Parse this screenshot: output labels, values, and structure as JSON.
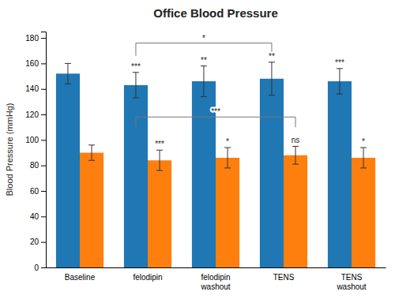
{
  "chart_data": {
    "type": "bar",
    "title": "Office Blood Pressure",
    "ylabel": "Blood Pressure (mmHg)",
    "categories": [
      "Baseline",
      "felodipin",
      "felodipin\nwashout",
      "TENS",
      "TENS\nwashout"
    ],
    "series": [
      {
        "values": [
          152,
          143,
          146,
          148,
          146
        ],
        "errors": [
          8,
          10,
          12,
          13,
          10
        ],
        "annotations": [
          null,
          "***",
          "**",
          "**",
          "***"
        ]
      },
      {
        "values": [
          90,
          84,
          86,
          88,
          86
        ],
        "errors": [
          6,
          8,
          8,
          7,
          8
        ],
        "annotations": [
          null,
          "***",
          "*",
          "ns",
          "*"
        ]
      }
    ],
    "brackets": [
      {
        "from": {
          "category": 1,
          "series": 0
        },
        "to": {
          "category": 3,
          "series": 0
        },
        "y": 176,
        "drop": 10,
        "label": "*"
      },
      {
        "from": {
          "category": 1,
          "series": 0
        },
        "to": {
          "category": 3,
          "series": 1
        },
        "y": 118,
        "drop": 8,
        "label": "***"
      }
    ],
    "ylim": [
      0,
      185
    ],
    "yticks": [
      0,
      20,
      40,
      60,
      80,
      100,
      120,
      140,
      160,
      180
    ],
    "grid": false
  }
}
